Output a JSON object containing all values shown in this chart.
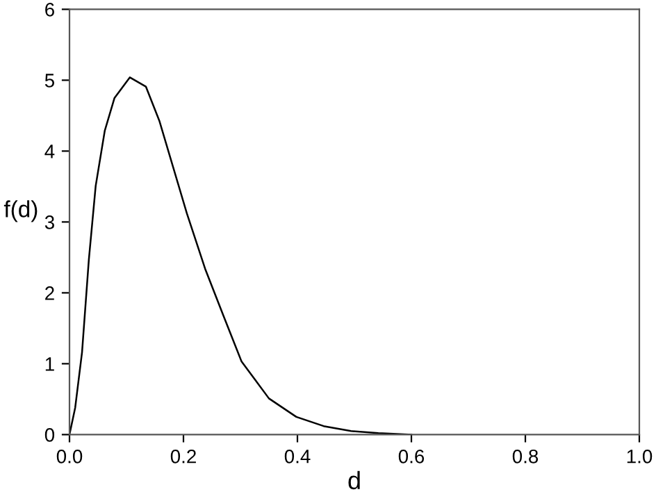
{
  "chart_data": {
    "type": "line",
    "xlabel": "d",
    "ylabel": "f(d)",
    "series": [
      {
        "color": "#000000",
        "x": [
          0,
          0.01,
          0.022,
          0.034,
          0.046,
          0.062,
          0.079,
          0.106,
          0.134,
          0.158,
          0.182,
          0.206,
          0.238,
          0.27,
          0.302,
          0.326,
          0.35,
          0.398,
          0.446,
          0.494,
          0.542,
          0.6
        ],
        "values": [
          0,
          0.38,
          1.16,
          2.47,
          3.51,
          4.29,
          4.75,
          5.04,
          4.91,
          4.42,
          3.77,
          3.12,
          2.34,
          1.68,
          1.03,
          0.77,
          0.51,
          0.25,
          0.12,
          0.05,
          0.02,
          0
        ]
      }
    ],
    "xlim": [
      0,
      1
    ],
    "ylim": [
      0,
      6
    ],
    "xticks": [
      {
        "value": 0,
        "label": "0.0"
      },
      0.2,
      0.4,
      0.6,
      0.8,
      {
        "value": 1,
        "label": "1.0"
      }
    ],
    "yticks": [
      0,
      1,
      2,
      3,
      4,
      5,
      6
    ],
    "grid": false,
    "legend": false,
    "marker": "none",
    "line_style": "solid"
  }
}
